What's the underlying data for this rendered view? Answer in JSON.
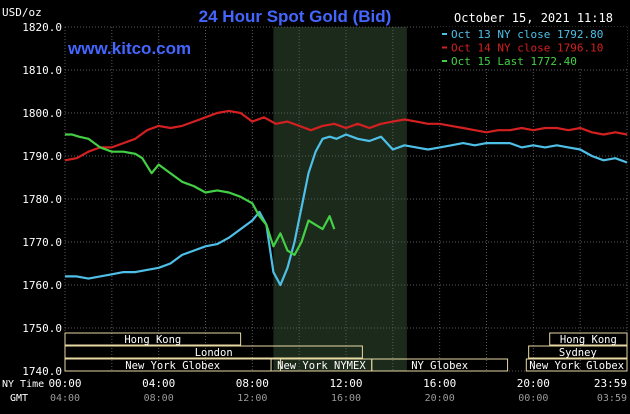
{
  "title": "24 Hour Spot Gold (Bid)",
  "currency_label": "USD/oz",
  "timestamp": "October 15, 2021 11:18",
  "website": "www.kitco.com",
  "colors": {
    "background": "#000000",
    "grid": "#5a5a5a",
    "title": "#4466ff",
    "website": "#4466ff",
    "axis_text": "#ffffff",
    "session_band": "#e8d9a3",
    "session_text": "#000000",
    "highlight": "#1c2a1c"
  },
  "axis_labels": {
    "ny_time": "NY Time",
    "gmt": "GMT"
  },
  "sessions": [
    {
      "label": "Hong Kong",
      "start_h": 0,
      "end_h": 7.5,
      "row": 1
    },
    {
      "label": "Hong Kong",
      "start_h": 20.7,
      "end_h": 24,
      "row": 1
    },
    {
      "label": "London",
      "start_h": 0,
      "end_h": 12.7,
      "row": 2
    },
    {
      "label": "Sydney",
      "start_h": 19.8,
      "end_h": 24,
      "row": 2
    },
    {
      "label": "New York Globex",
      "start_h": 0,
      "end_h": 9.2,
      "row": 3
    },
    {
      "label": "New York NYMEX",
      "start_h": 8.8,
      "end_h": 13.1,
      "row": 3
    },
    {
      "label": "NY Globex",
      "start_h": 13.1,
      "end_h": 18.9,
      "row": 3
    },
    {
      "label": "New York Globex",
      "start_h": 19.7,
      "end_h": 24,
      "row": 3
    }
  ],
  "chart_data": {
    "type": "line",
    "title": "24 Hour Spot Gold (Bid)",
    "ylabel": "USD/oz",
    "ylim": [
      1740,
      1820
    ],
    "yticks": [
      "1820.0",
      "1810.0",
      "1800.0",
      "1790.0",
      "1780.0",
      "1770.0",
      "1760.0",
      "1750.0",
      "1740.0"
    ],
    "xlim": [
      0,
      24
    ],
    "xticks_ny": [
      "00:00",
      "04:00",
      "08:00",
      "12:00",
      "16:00",
      "20:00",
      "23:59"
    ],
    "xticks_gmt": [
      "04:00",
      "08:00",
      "12:00",
      "16:00",
      "20:00",
      "00:00",
      "03:59"
    ],
    "highlight_range": [
      8.9,
      14.6
    ],
    "grid": true,
    "legend_position": "top-right",
    "series": [
      {
        "name": "Oct 13 NY close 1792.80",
        "color": "#4ec0e8",
        "x": [
          0,
          0.5,
          1,
          1.5,
          2,
          2.5,
          3,
          3.5,
          4,
          4.5,
          5,
          5.5,
          6,
          6.5,
          7,
          7.5,
          8,
          8.3,
          8.6,
          8.9,
          9.2,
          9.5,
          9.8,
          10.1,
          10.4,
          10.7,
          11,
          11.3,
          11.6,
          12,
          12.5,
          13,
          13.5,
          14,
          14.5,
          15,
          15.5,
          16,
          16.5,
          17,
          17.5,
          18,
          18.5,
          19,
          19.5,
          20,
          20.5,
          21,
          21.5,
          22,
          22.5,
          23,
          23.5,
          24
        ],
        "values": [
          1762,
          1762,
          1761.5,
          1762,
          1762.5,
          1763,
          1763,
          1763.5,
          1764,
          1765,
          1767,
          1768,
          1769,
          1769.5,
          1771,
          1773,
          1775,
          1777,
          1774,
          1763,
          1760,
          1764,
          1770,
          1778,
          1786,
          1791,
          1794,
          1794.5,
          1794,
          1795,
          1794,
          1793.5,
          1794.5,
          1791.5,
          1792.5,
          1792,
          1791.5,
          1792,
          1792.5,
          1793,
          1792.5,
          1793,
          1793,
          1793,
          1792,
          1792.5,
          1792,
          1792.5,
          1792,
          1791.5,
          1790,
          1789,
          1789.5,
          1788.5
        ]
      },
      {
        "name": "Oct 14 NY close 1796.10",
        "color": "#d42020",
        "x": [
          0,
          0.5,
          1,
          1.5,
          2,
          2.5,
          3,
          3.5,
          4,
          4.5,
          5,
          5.5,
          6,
          6.5,
          7,
          7.5,
          8,
          8.5,
          9,
          9.5,
          10,
          10.5,
          11,
          11.5,
          12,
          12.5,
          13,
          13.5,
          14,
          14.5,
          15,
          15.5,
          16,
          16.5,
          17,
          17.5,
          18,
          18.5,
          19,
          19.5,
          20,
          20.5,
          21,
          21.5,
          22,
          22.5,
          23,
          23.5,
          24
        ],
        "values": [
          1789,
          1789.5,
          1791,
          1792,
          1792,
          1793,
          1794,
          1796,
          1797,
          1796.5,
          1797,
          1798,
          1799,
          1800,
          1800.5,
          1800,
          1798,
          1799,
          1797.5,
          1798,
          1797,
          1796,
          1797,
          1797.5,
          1796.5,
          1797.5,
          1796.5,
          1797.5,
          1798,
          1798.5,
          1798,
          1797.5,
          1797.5,
          1797,
          1796.5,
          1796,
          1795.5,
          1796,
          1796,
          1796.5,
          1796,
          1796.5,
          1796.5,
          1796,
          1796.5,
          1795.5,
          1795,
          1795.5,
          1795
        ]
      },
      {
        "name": "Oct 15 Last 1772.40",
        "color": "#44d044",
        "x": [
          0,
          0.3,
          0.6,
          1,
          1.5,
          2,
          2.5,
          3,
          3.3,
          3.7,
          4,
          4.5,
          5,
          5.5,
          6,
          6.5,
          7,
          7.5,
          8,
          8.3,
          8.6,
          8.9,
          9.2,
          9.5,
          9.8,
          10.1,
          10.4,
          10.7,
          11,
          11.3,
          11.5
        ],
        "values": [
          1795,
          1795,
          1794.5,
          1794,
          1792,
          1791,
          1791,
          1790.5,
          1789.5,
          1786,
          1788,
          1786,
          1784,
          1783,
          1781.5,
          1782,
          1781.5,
          1780.5,
          1779,
          1776,
          1774,
          1769,
          1772,
          1768,
          1767,
          1770,
          1775,
          1774,
          1773,
          1776,
          1773
        ]
      }
    ]
  }
}
